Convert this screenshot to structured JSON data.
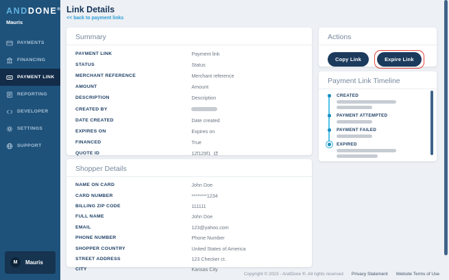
{
  "brand": {
    "logo_and": "AND",
    "logo_done": "DONE",
    "registered": "®",
    "workspace": "Mauris"
  },
  "sidebar": {
    "items": [
      {
        "label": "PAYMENTS",
        "icon": "card",
        "active": false
      },
      {
        "label": "FINANCING",
        "icon": "bank",
        "active": false
      },
      {
        "label": "PAYMENT LINK",
        "icon": "payment-link",
        "active": true
      },
      {
        "label": "REPORTING",
        "icon": "report",
        "active": false
      },
      {
        "label": "DEVELOPER",
        "icon": "code",
        "active": false
      },
      {
        "label": "SETTINGS",
        "icon": "gear",
        "active": false
      },
      {
        "label": "SUPPORT",
        "icon": "globe",
        "active": false
      }
    ],
    "user": {
      "initial": "M",
      "name": "Mauris"
    }
  },
  "header": {
    "title": "Link Details",
    "back_link": "<< back to payment links"
  },
  "summary": {
    "title": "Summary",
    "rows": [
      {
        "label": "PAYMENT LINK",
        "value": "Payment link"
      },
      {
        "label": "STATUS",
        "value": "Status"
      },
      {
        "label": "MERCHANT REFERENCE",
        "value": "Merchant reference"
      },
      {
        "label": "AMOUNT",
        "value": "Amount"
      },
      {
        "label": "DESCRIPTION",
        "value": "Description"
      },
      {
        "label": "CREATED BY",
        "value": "",
        "type": "redacted"
      },
      {
        "label": "DATE CREATED",
        "value": "Date created"
      },
      {
        "label": "EXPIRES ON",
        "value": "Expires on"
      },
      {
        "label": "FINANCED",
        "value": "True"
      },
      {
        "label": "QUOTE ID",
        "value": "12f129f1",
        "type": "link",
        "icon": "external-link"
      }
    ]
  },
  "shopper": {
    "title": "Shopper Details",
    "rows": [
      {
        "label": "NAME ON CARD",
        "value": "John Doe"
      },
      {
        "label": "CARD NUMBER",
        "value": "********1234"
      },
      {
        "label": "BILLING ZIP CODE",
        "value": "111111"
      },
      {
        "label": "FULL NAME",
        "value": "John Doe"
      },
      {
        "label": "EMAIL",
        "value": "123@yahoo.com"
      },
      {
        "label": "PHONE NUMBER",
        "value": "Phone Number"
      },
      {
        "label": "SHOPPER COUNTRY",
        "value": "United States of America"
      },
      {
        "label": "STREET ADDRESS",
        "value": "123 Checker ct."
      },
      {
        "label": "CITY",
        "value": "Kansas City"
      }
    ]
  },
  "actions": {
    "title": "Actions",
    "copy_label": "Copy Link",
    "expire_label": "Expire Link",
    "highlighted": "Expire Link"
  },
  "timeline": {
    "title": "Payment Link Timeline",
    "events": [
      {
        "label": "CREATED",
        "bar_widths_pct": [
          68,
          41
        ],
        "current": false
      },
      {
        "label": "PAYMENT ATTEMPTED",
        "bar_widths_pct": [
          41
        ],
        "current": false
      },
      {
        "label": "PAYMENT FAILED",
        "bar_widths_pct": [
          41
        ],
        "current": false
      },
      {
        "label": "EXPIRED",
        "bar_widths_pct": [
          68,
          47
        ],
        "current": true
      }
    ]
  },
  "footer": {
    "copyright": "Copyright © 2023 - AndDone ®. All rights reserved",
    "privacy": "Privacy Statement",
    "terms": "Website Terms of Use"
  },
  "colors": {
    "sidebar": "#1e527b",
    "sidebar_active": "#132c49",
    "accent_link": "#2d9dd6",
    "button_navy": "#1b3a5c",
    "annotation_red": "#e0443c",
    "timeline_blue": "#4fc0e8",
    "redacted_gray": "#c7ccd3"
  }
}
